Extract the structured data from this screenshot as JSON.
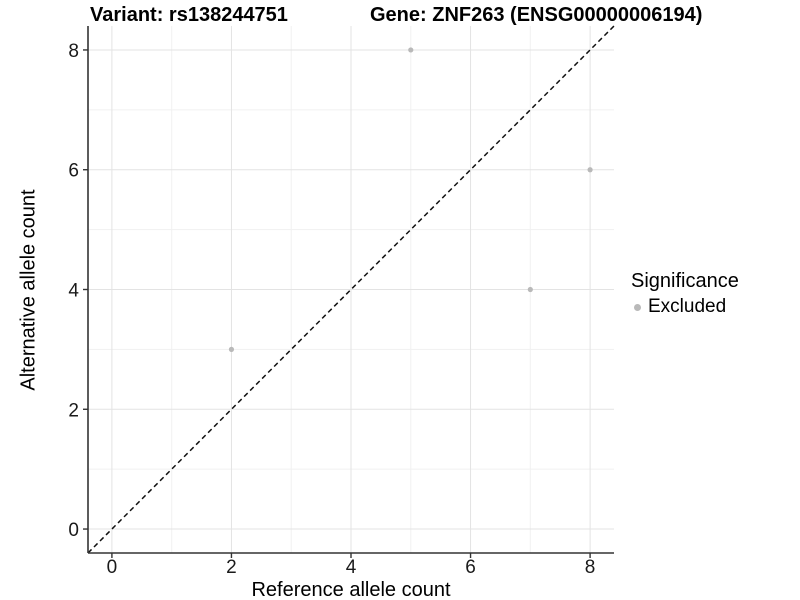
{
  "chart_data": {
    "type": "scatter",
    "title_left": "Variant: rs138244751",
    "title_right": "Gene: ZNF263 (ENSG00000006194)",
    "xlabel": "Reference allele count",
    "ylabel": "Alternative allele count",
    "xlim": [
      -0.4,
      8.4
    ],
    "ylim": [
      -0.4,
      8.4
    ],
    "x_ticks": [
      0,
      2,
      4,
      6,
      8
    ],
    "y_ticks": [
      0,
      2,
      4,
      6,
      8
    ],
    "minor_grid_x": [
      1,
      3,
      5,
      7
    ],
    "minor_grid_y": [
      1,
      3,
      5,
      7
    ],
    "series": [
      {
        "name": "Excluded",
        "color": "#b9b9b9",
        "points": [
          [
            5,
            8
          ],
          [
            8,
            6
          ],
          [
            7,
            4
          ],
          [
            2,
            3
          ]
        ]
      }
    ],
    "reference_line": {
      "style": "dashed",
      "color": "#111111",
      "from": [
        -0.4,
        -0.4
      ],
      "to": [
        8.4,
        8.4
      ]
    },
    "legend": {
      "title": "Significance",
      "position": "right",
      "items": [
        {
          "label": "Excluded",
          "color": "#b9b9b9"
        }
      ]
    },
    "colors": {
      "grid_major": "#e3e3e3",
      "grid_minor": "#f1f1f1",
      "axis": "#333333",
      "tick_text": "#1a1a1a",
      "background": "#ffffff"
    }
  }
}
